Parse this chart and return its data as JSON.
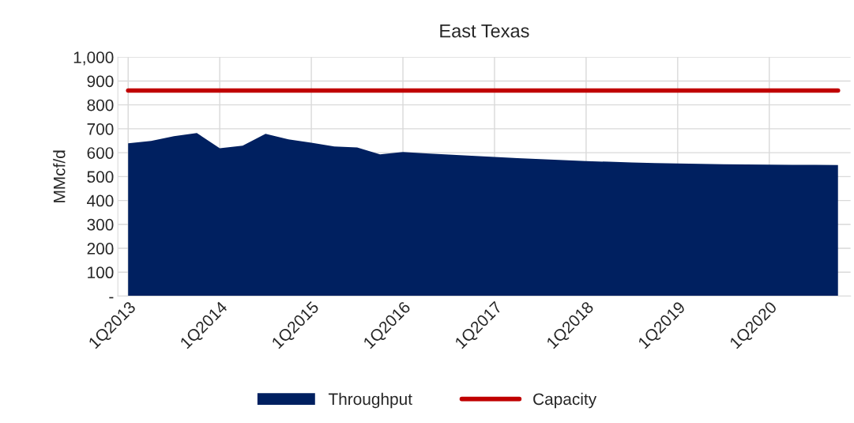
{
  "chart_data": {
    "type": "area",
    "title": "East Texas",
    "ylabel": "MMcf/d",
    "categories": [
      "1Q2013",
      null,
      null,
      null,
      "1Q2014",
      null,
      null,
      null,
      "1Q2015",
      null,
      null,
      null,
      "1Q2016",
      null,
      null,
      null,
      "1Q2017",
      null,
      null,
      null,
      "1Q2018",
      null,
      null,
      null,
      "1Q2019",
      null,
      null,
      null,
      "1Q2020",
      null,
      null,
      null
    ],
    "series": [
      {
        "name": "Throughput",
        "color": "#002060",
        "values": [
          639,
          649,
          669,
          682,
          619,
          629,
          679,
          656,
          642,
          626,
          622,
          593,
          603,
          597,
          592,
          587,
          582,
          577,
          573,
          569,
          565,
          562,
          559,
          557,
          555,
          553,
          552,
          551,
          550,
          549,
          549,
          548
        ]
      },
      {
        "name": "Capacity",
        "type": "line",
        "color": "#c00000",
        "values": [
          860,
          860,
          860,
          860,
          860,
          860,
          860,
          860,
          860,
          860,
          860,
          860,
          860,
          860,
          860,
          860,
          860,
          860,
          860,
          860,
          860,
          860,
          860,
          860,
          860,
          860,
          860,
          860,
          860,
          860,
          860,
          860
        ]
      }
    ],
    "ylim": [
      0,
      1000
    ],
    "yticks": [
      {
        "value": 0,
        "label": "-"
      },
      100,
      200,
      300,
      400,
      500,
      600,
      700,
      800,
      900,
      {
        "value": 1000,
        "label": "1,000"
      }
    ],
    "grid": true,
    "legend": "bottom"
  }
}
